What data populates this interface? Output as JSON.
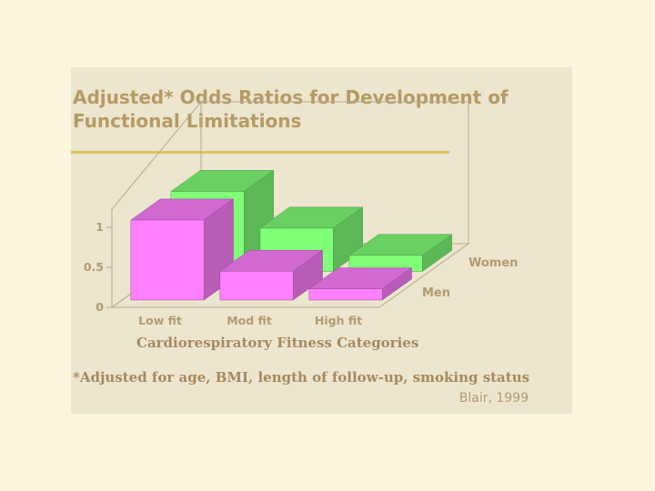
{
  "slide": {
    "title": "Adjusted* Odds Ratios for Development of Functional Limitations",
    "footnote": "*Adjusted for age, BMI, length of follow-up, smoking status",
    "source": "Blair, 1999"
  },
  "colors": {
    "background": "#fdf4dd",
    "panel": "#ece6cf",
    "title": "#b69a64",
    "rule": "#dcc35c",
    "men": "#ff80ff",
    "women": "#80ff78"
  },
  "chart_data": {
    "type": "bar",
    "style": "3d",
    "categories": [
      "Low fit",
      "Mod fit",
      "High fit"
    ],
    "series": [
      {
        "name": "Men",
        "values": [
          1.0,
          0.36,
          0.14
        ]
      },
      {
        "name": "Women",
        "values": [
          1.0,
          0.54,
          0.2
        ]
      }
    ],
    "yticks": [
      "0",
      "0.5",
      "1"
    ],
    "ylim": [
      0,
      1.2
    ],
    "xlabel": "Cardiorespiratory Fitness Categories",
    "ylabel": "",
    "legend": "series labels on depth axis"
  }
}
